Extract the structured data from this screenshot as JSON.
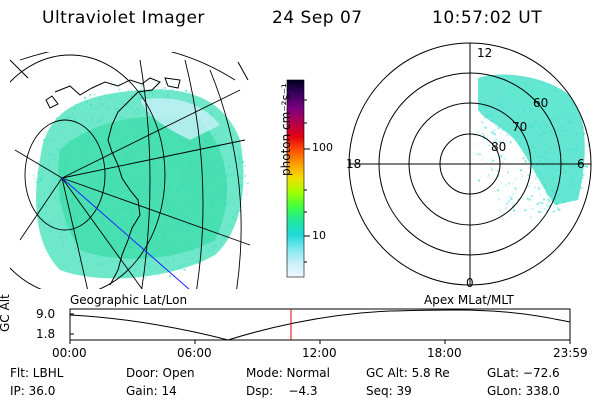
{
  "header": {
    "title": "Ultraviolet Imager",
    "date": "24 Sep 07",
    "time": "10:57:02 UT"
  },
  "colorbar": {
    "label": "photon cm⁻²s⁻¹",
    "ticks": [
      "100",
      "10"
    ],
    "colors": [
      "#000020",
      "#3a0060",
      "#7a0080",
      "#b00050",
      "#e00010",
      "#ff5000",
      "#ffa000",
      "#f0e000",
      "#a0ff00",
      "#40ff40",
      "#20e8a0",
      "#20d8d8",
      "#80e8f0",
      "#c8f0f8",
      "#f0f8ff"
    ]
  },
  "panels": {
    "left_caption": "Geographic Lat/Lon",
    "right_caption": "Apex MLat/MLT"
  },
  "polar": {
    "mlt_labels": {
      "top": "12",
      "left": "18",
      "right": "6",
      "bottom": "0"
    },
    "lat_labels": [
      "60",
      "70",
      "80"
    ]
  },
  "altitude_plot": {
    "ylabel": "GC Alt",
    "yticks": [
      "9.0",
      "1.8"
    ],
    "xticks": [
      "00:00",
      "06:00",
      "12:00",
      "18:00",
      "23:59"
    ],
    "current_time_marker_color": "#dd0000"
  },
  "footer": {
    "flt": "Flt: LBHL",
    "door": "Door: Open",
    "mode": "Mode: Normal",
    "gc_alt": "GC Alt: 5.8 Re",
    "glat": "GLat: −72.6",
    "ip": "IP: 36.0",
    "gain": "Gain: 14",
    "dsp": "Dsp:    −4.3",
    "seq": "Seq: 39",
    "glon": "GLon: 338.0"
  }
}
